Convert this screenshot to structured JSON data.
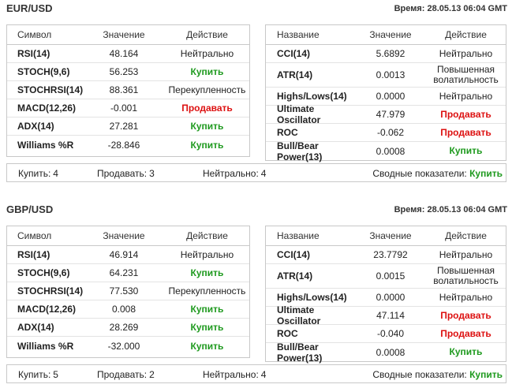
{
  "blocks": [
    {
      "pair": "EUR/USD",
      "time": "Время: 28.05.13 06:04 GMT",
      "left": {
        "headers": [
          "Символ",
          "Значение",
          "Действие"
        ],
        "rows": [
          {
            "name": "RSI(14)",
            "value": "48.164",
            "action": "Нейтрально",
            "kind": "neutral"
          },
          {
            "name": "STOCH(9,6)",
            "value": "56.253",
            "action": "Купить",
            "kind": "buy"
          },
          {
            "name": "STOCHRSI(14)",
            "value": "88.361",
            "action": "Перекупленность",
            "kind": "overbought"
          },
          {
            "name": "MACD(12,26)",
            "value": "-0.001",
            "action": "Продавать",
            "kind": "sell"
          },
          {
            "name": "ADX(14)",
            "value": "27.281",
            "action": "Купить",
            "kind": "buy"
          },
          {
            "name": "Williams %R",
            "value": "-28.846",
            "action": "Купить",
            "kind": "buy"
          }
        ]
      },
      "right": {
        "headers": [
          "Название",
          "Значение",
          "Действие"
        ],
        "rows": [
          {
            "name": "CCI(14)",
            "value": "5.6892",
            "action": "Нейтрально",
            "kind": "neutral"
          },
          {
            "name": "ATR(14)",
            "value": "0.0013",
            "action": "Повышенная волатильность",
            "kind": "neutral",
            "tall": true
          },
          {
            "name": "Highs/Lows(14)",
            "value": "0.0000",
            "action": "Нейтрально",
            "kind": "neutral"
          },
          {
            "name": "Ultimate Oscillator",
            "value": "47.979",
            "action": "Продавать",
            "kind": "sell"
          },
          {
            "name": "ROC",
            "value": "-0.062",
            "action": "Продавать",
            "kind": "sell"
          },
          {
            "name": "Bull/Bear Power(13)",
            "value": "0.0008",
            "action": "Купить",
            "kind": "buy"
          }
        ]
      },
      "summary": {
        "buy_label": "Купить:",
        "buy_count": "4",
        "sell_label": "Продавать:",
        "sell_count": "3",
        "neutral_label": "Нейтрально:",
        "neutral_count": "4",
        "total_label": "Сводные показатели:",
        "total_value": "Купить"
      }
    },
    {
      "pair": "GBP/USD",
      "time": "Время: 28.05.13 06:04 GMT",
      "left": {
        "headers": [
          "Символ",
          "Значение",
          "Действие"
        ],
        "rows": [
          {
            "name": "RSI(14)",
            "value": "46.914",
            "action": "Нейтрально",
            "kind": "neutral"
          },
          {
            "name": "STOCH(9,6)",
            "value": "64.231",
            "action": "Купить",
            "kind": "buy"
          },
          {
            "name": "STOCHRSI(14)",
            "value": "77.530",
            "action": "Перекупленность",
            "kind": "overbought"
          },
          {
            "name": "MACD(12,26)",
            "value": "0.008",
            "action": "Купить",
            "kind": "buy"
          },
          {
            "name": "ADX(14)",
            "value": "28.269",
            "action": "Купить",
            "kind": "buy"
          },
          {
            "name": "Williams %R",
            "value": "-32.000",
            "action": "Купить",
            "kind": "buy"
          }
        ]
      },
      "right": {
        "headers": [
          "Название",
          "Значение",
          "Действие"
        ],
        "rows": [
          {
            "name": "CCI(14)",
            "value": "23.7792",
            "action": "Нейтрально",
            "kind": "neutral"
          },
          {
            "name": "ATR(14)",
            "value": "0.0015",
            "action": "Повышенная волатильность",
            "kind": "neutral",
            "tall": true
          },
          {
            "name": "Highs/Lows(14)",
            "value": "0.0000",
            "action": "Нейтрально",
            "kind": "neutral"
          },
          {
            "name": "Ultimate Oscillator",
            "value": "47.114",
            "action": "Продавать",
            "kind": "sell"
          },
          {
            "name": "ROC",
            "value": "-0.040",
            "action": "Продавать",
            "kind": "sell"
          },
          {
            "name": "Bull/Bear Power(13)",
            "value": "0.0008",
            "action": "Купить",
            "kind": "buy"
          }
        ]
      },
      "summary": {
        "buy_label": "Купить:",
        "buy_count": "5",
        "sell_label": "Продавать:",
        "sell_count": "2",
        "neutral_label": "Нейтрально:",
        "neutral_count": "4",
        "total_label": "Сводные показатели:",
        "total_value": "Купить"
      }
    }
  ]
}
